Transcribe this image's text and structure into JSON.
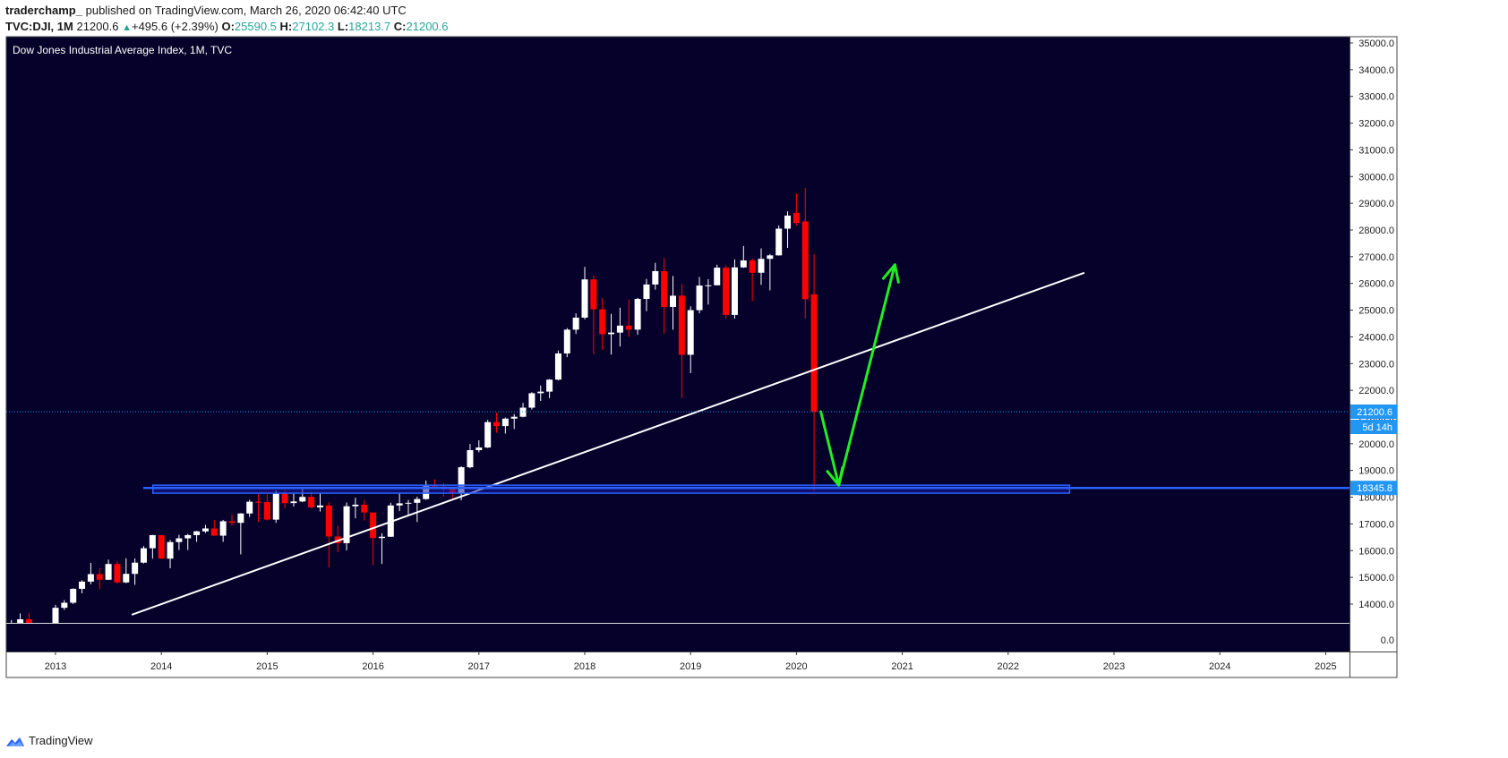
{
  "header": {
    "publisher": "traderchamp_",
    "published_text": "published on TradingView.com, March 26, 2020 06:42:40 UTC",
    "symbol": "TVC:DJI, 1M",
    "last": "21200.6",
    "change": "+495.6 (+2.39%)",
    "o_label": "O:",
    "o_value": "25590.5",
    "h_label": "H:",
    "h_value": "27102.3",
    "l_label": "L:",
    "l_value": "18213.7",
    "c_label": "C:",
    "c_value": "21200.6"
  },
  "footer": {
    "brand": "TradingView",
    "logo_icon": "tradingview-logo-icon"
  },
  "colors": {
    "background": "#05012a",
    "bull": "#ffffff",
    "bear": "#ff0000",
    "grid_text": "#ffffff",
    "trendline": "#ffffff",
    "support_zone": "#2962ff",
    "arrow": "#22ee22",
    "price_tag": "#2196f3"
  },
  "chart_data": {
    "type": "candlestick",
    "title": "Dow Jones Industrial Average Index, 1M, TVC",
    "y_ticks": [
      "35000.0",
      "34000.0",
      "33000.0",
      "32000.0",
      "31000.0",
      "30000.0",
      "29000.0",
      "28000.0",
      "27000.0",
      "26000.0",
      "25000.0",
      "24000.0",
      "23000.0",
      "22000.0",
      "21000.0",
      "20000.0",
      "19000.0",
      "18000.0",
      "17000.0",
      "16000.0",
      "15000.0",
      "14000.0"
    ],
    "lower_pane_tick": "0.0",
    "x_ticks": [
      "2013",
      "2014",
      "2015",
      "2016",
      "2017",
      "2018",
      "2019",
      "2020",
      "2021",
      "2022",
      "2023",
      "2024",
      "2025"
    ],
    "ylim": [
      13600,
      35200
    ],
    "last_price_label": "21200.6",
    "countdown_label": "5d 14h",
    "support_label": "18345.8",
    "support_level": 18345.8,
    "support_zone": {
      "from": 18150,
      "to": 18450,
      "x_start": 2013.92,
      "x_end": 2022.58
    },
    "trendline": {
      "x1": 2013.72,
      "y1": 13600,
      "x2": 2022.72,
      "y2": 26400
    },
    "arrow_down": {
      "x1": 2020.23,
      "y1": 21200,
      "x2": 2020.4,
      "y2": 18450
    },
    "arrow_up": {
      "x1": 2020.4,
      "y1": 18450,
      "x2": 2020.93,
      "y2": 26700
    },
    "candles": [
      {
        "t": "2012-08",
        "o": 13000,
        "h": 13400,
        "l": 12900,
        "c": 13100
      },
      {
        "t": "2012-09",
        "o": 13100,
        "h": 13650,
        "l": 13050,
        "c": 13430
      },
      {
        "t": "2012-10",
        "o": 13430,
        "h": 13650,
        "l": 13000,
        "c": 13090
      },
      {
        "t": "2012-11",
        "o": 13090,
        "h": 13300,
        "l": 12540,
        "c": 13020
      },
      {
        "t": "2012-12",
        "o": 13020,
        "h": 13300,
        "l": 12880,
        "c": 13100
      },
      {
        "t": "2013-01",
        "o": 13100,
        "h": 13970,
        "l": 13100,
        "c": 13860
      },
      {
        "t": "2013-02",
        "o": 13860,
        "h": 14150,
        "l": 13780,
        "c": 14050
      },
      {
        "t": "2013-03",
        "o": 14050,
        "h": 14590,
        "l": 14000,
        "c": 14570
      },
      {
        "t": "2013-04",
        "o": 14570,
        "h": 14890,
        "l": 14400,
        "c": 14840
      },
      {
        "t": "2013-05",
        "o": 14840,
        "h": 15540,
        "l": 14740,
        "c": 15120
      },
      {
        "t": "2013-06",
        "o": 15120,
        "h": 15350,
        "l": 14550,
        "c": 14910
      },
      {
        "t": "2013-07",
        "o": 14910,
        "h": 15660,
        "l": 14900,
        "c": 15500
      },
      {
        "t": "2013-08",
        "o": 15500,
        "h": 15600,
        "l": 14760,
        "c": 14810
      },
      {
        "t": "2013-09",
        "o": 14810,
        "h": 15710,
        "l": 14780,
        "c": 15130
      },
      {
        "t": "2013-10",
        "o": 15130,
        "h": 15710,
        "l": 14720,
        "c": 15550
      },
      {
        "t": "2013-11",
        "o": 15550,
        "h": 16170,
        "l": 15520,
        "c": 16090
      },
      {
        "t": "2013-12",
        "o": 16090,
        "h": 16590,
        "l": 15700,
        "c": 16580
      },
      {
        "t": "2014-01",
        "o": 16580,
        "h": 16590,
        "l": 15690,
        "c": 15700
      },
      {
        "t": "2014-02",
        "o": 15700,
        "h": 16400,
        "l": 15340,
        "c": 16320
      },
      {
        "t": "2014-03",
        "o": 16320,
        "h": 16590,
        "l": 16020,
        "c": 16460
      },
      {
        "t": "2014-04",
        "o": 16460,
        "h": 16630,
        "l": 16020,
        "c": 16580
      },
      {
        "t": "2014-05",
        "o": 16580,
        "h": 16740,
        "l": 16330,
        "c": 16720
      },
      {
        "t": "2014-06",
        "o": 16720,
        "h": 16960,
        "l": 16660,
        "c": 16830
      },
      {
        "t": "2014-07",
        "o": 16830,
        "h": 17150,
        "l": 16560,
        "c": 16560
      },
      {
        "t": "2014-08",
        "o": 16560,
        "h": 17150,
        "l": 16330,
        "c": 17100
      },
      {
        "t": "2014-09",
        "o": 17100,
        "h": 17350,
        "l": 16940,
        "c": 17040
      },
      {
        "t": "2014-10",
        "o": 17040,
        "h": 17400,
        "l": 15860,
        "c": 17390
      },
      {
        "t": "2014-11",
        "o": 17390,
        "h": 17900,
        "l": 17260,
        "c": 17830
      },
      {
        "t": "2014-12",
        "o": 17830,
        "h": 18100,
        "l": 17070,
        "c": 17820
      },
      {
        "t": "2015-01",
        "o": 17820,
        "h": 18100,
        "l": 17130,
        "c": 17160
      },
      {
        "t": "2015-02",
        "o": 17160,
        "h": 18250,
        "l": 17040,
        "c": 18130
      },
      {
        "t": "2015-03",
        "o": 18130,
        "h": 18290,
        "l": 17580,
        "c": 17780
      },
      {
        "t": "2015-04",
        "o": 17780,
        "h": 18170,
        "l": 17650,
        "c": 17840
      },
      {
        "t": "2015-05",
        "o": 17840,
        "h": 18350,
        "l": 17810,
        "c": 18010
      },
      {
        "t": "2015-06",
        "o": 18010,
        "h": 18200,
        "l": 17580,
        "c": 17620
      },
      {
        "t": "2015-07",
        "o": 17620,
        "h": 18140,
        "l": 17460,
        "c": 17690
      },
      {
        "t": "2015-08",
        "o": 17690,
        "h": 17810,
        "l": 15370,
        "c": 16530
      },
      {
        "t": "2015-09",
        "o": 16530,
        "h": 16930,
        "l": 15940,
        "c": 16280
      },
      {
        "t": "2015-10",
        "o": 16280,
        "h": 17800,
        "l": 16010,
        "c": 17660
      },
      {
        "t": "2015-11",
        "o": 17660,
        "h": 17980,
        "l": 17210,
        "c": 17720
      },
      {
        "t": "2015-12",
        "o": 17720,
        "h": 17900,
        "l": 17130,
        "c": 17430
      },
      {
        "t": "2016-01",
        "o": 17430,
        "h": 17430,
        "l": 15450,
        "c": 16470
      },
      {
        "t": "2016-02",
        "o": 16470,
        "h": 16650,
        "l": 15500,
        "c": 16520
      },
      {
        "t": "2016-03",
        "o": 16520,
        "h": 17790,
        "l": 16510,
        "c": 17690
      },
      {
        "t": "2016-04",
        "o": 17690,
        "h": 18170,
        "l": 17480,
        "c": 17770
      },
      {
        "t": "2016-05",
        "o": 17770,
        "h": 17900,
        "l": 17330,
        "c": 17790
      },
      {
        "t": "2016-06",
        "o": 17790,
        "h": 18020,
        "l": 17070,
        "c": 17930
      },
      {
        "t": "2016-07",
        "o": 17930,
        "h": 18620,
        "l": 17900,
        "c": 18430
      },
      {
        "t": "2016-08",
        "o": 18430,
        "h": 18670,
        "l": 18360,
        "c": 18400
      },
      {
        "t": "2016-09",
        "o": 18400,
        "h": 18530,
        "l": 18020,
        "c": 18310
      },
      {
        "t": "2016-10",
        "o": 18310,
        "h": 18400,
        "l": 17960,
        "c": 18140
      },
      {
        "t": "2016-11",
        "o": 18140,
        "h": 19160,
        "l": 17880,
        "c": 19120
      },
      {
        "t": "2016-12",
        "o": 19120,
        "h": 19990,
        "l": 19080,
        "c": 19760
      },
      {
        "t": "2017-01",
        "o": 19760,
        "h": 20130,
        "l": 19680,
        "c": 19860
      },
      {
        "t": "2017-02",
        "o": 19860,
        "h": 20890,
        "l": 19840,
        "c": 20810
      },
      {
        "t": "2017-03",
        "o": 20810,
        "h": 21170,
        "l": 20410,
        "c": 20660
      },
      {
        "t": "2017-04",
        "o": 20660,
        "h": 20980,
        "l": 20380,
        "c": 20940
      },
      {
        "t": "2017-05",
        "o": 20940,
        "h": 21110,
        "l": 20550,
        "c": 21010
      },
      {
        "t": "2017-06",
        "o": 21010,
        "h": 21530,
        "l": 20990,
        "c": 21350
      },
      {
        "t": "2017-07",
        "o": 21350,
        "h": 21930,
        "l": 21280,
        "c": 21890
      },
      {
        "t": "2017-08",
        "o": 21890,
        "h": 22180,
        "l": 21600,
        "c": 21950
      },
      {
        "t": "2017-09",
        "o": 21950,
        "h": 22420,
        "l": 21710,
        "c": 22400
      },
      {
        "t": "2017-10",
        "o": 22400,
        "h": 23490,
        "l": 22370,
        "c": 23380
      },
      {
        "t": "2017-11",
        "o": 23380,
        "h": 24330,
        "l": 23240,
        "c": 24270
      },
      {
        "t": "2017-12",
        "o": 24270,
        "h": 24880,
        "l": 24110,
        "c": 24720
      },
      {
        "t": "2018-01",
        "o": 24720,
        "h": 26620,
        "l": 24660,
        "c": 26150
      },
      {
        "t": "2018-02",
        "o": 26150,
        "h": 26310,
        "l": 23360,
        "c": 25030
      },
      {
        "t": "2018-03",
        "o": 25030,
        "h": 25450,
        "l": 23510,
        "c": 24100
      },
      {
        "t": "2018-04",
        "o": 24100,
        "h": 24860,
        "l": 23340,
        "c": 24160
      },
      {
        "t": "2018-05",
        "o": 24160,
        "h": 25090,
        "l": 23640,
        "c": 24420
      },
      {
        "t": "2018-06",
        "o": 24420,
        "h": 25400,
        "l": 24010,
        "c": 24270
      },
      {
        "t": "2018-07",
        "o": 24270,
        "h": 25460,
        "l": 24080,
        "c": 25420
      },
      {
        "t": "2018-08",
        "o": 25420,
        "h": 26170,
        "l": 24960,
        "c": 25960
      },
      {
        "t": "2018-09",
        "o": 25960,
        "h": 26770,
        "l": 25770,
        "c": 26460
      },
      {
        "t": "2018-10",
        "o": 26460,
        "h": 26950,
        "l": 24120,
        "c": 25120
      },
      {
        "t": "2018-11",
        "o": 25120,
        "h": 26280,
        "l": 24270,
        "c": 25540
      },
      {
        "t": "2018-12",
        "o": 25540,
        "h": 25980,
        "l": 21710,
        "c": 23330
      },
      {
        "t": "2019-01",
        "o": 23330,
        "h": 25140,
        "l": 22640,
        "c": 25000
      },
      {
        "t": "2019-02",
        "o": 25000,
        "h": 26240,
        "l": 24880,
        "c": 25920
      },
      {
        "t": "2019-03",
        "o": 25920,
        "h": 26160,
        "l": 25210,
        "c": 25930
      },
      {
        "t": "2019-04",
        "o": 25930,
        "h": 26700,
        "l": 25970,
        "c": 26590
      },
      {
        "t": "2019-05",
        "o": 26590,
        "h": 26670,
        "l": 24680,
        "c": 24820
      },
      {
        "t": "2019-06",
        "o": 24820,
        "h": 26900,
        "l": 24680,
        "c": 26600
      },
      {
        "t": "2019-07",
        "o": 26600,
        "h": 27400,
        "l": 26580,
        "c": 26860
      },
      {
        "t": "2019-08",
        "o": 26860,
        "h": 26930,
        "l": 25340,
        "c": 26400
      },
      {
        "t": "2019-09",
        "o": 26400,
        "h": 27310,
        "l": 25950,
        "c": 26920
      },
      {
        "t": "2019-10",
        "o": 26920,
        "h": 27100,
        "l": 25740,
        "c": 27050
      },
      {
        "t": "2019-11",
        "o": 27050,
        "h": 28170,
        "l": 27040,
        "c": 28050
      },
      {
        "t": "2019-12",
        "o": 28050,
        "h": 28700,
        "l": 27330,
        "c": 28540
      },
      {
        "t": "2020-01",
        "o": 28640,
        "h": 29370,
        "l": 28170,
        "c": 28260
      },
      {
        "t": "2020-02",
        "o": 28320,
        "h": 29570,
        "l": 24680,
        "c": 25410
      },
      {
        "t": "2020-03",
        "o": 25590,
        "h": 27102,
        "l": 18213,
        "c": 21200
      }
    ]
  }
}
